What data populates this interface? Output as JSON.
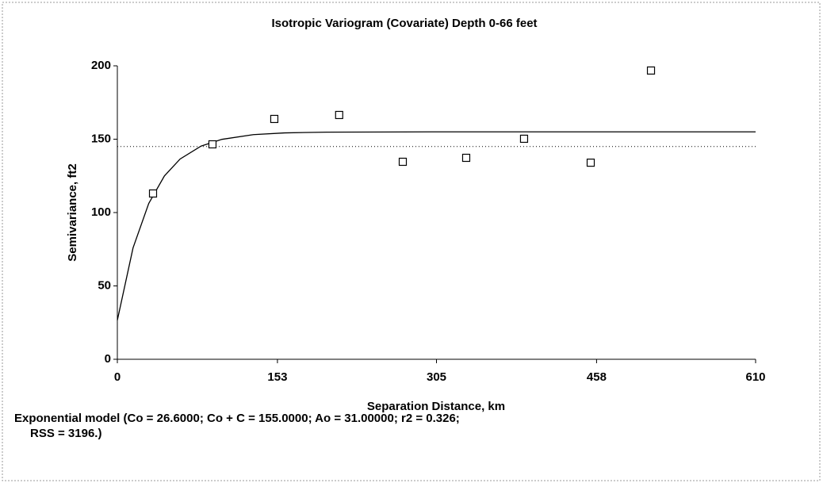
{
  "chart_data": {
    "type": "scatter",
    "title": "Isotropic Variogram (Covariate) Depth 0-66 feet",
    "x_label": "Separation Distance, km",
    "y_label": "Semivariance, ft2",
    "x": [
      34.1,
      90.9,
      150,
      212,
      272.8,
      333.4,
      388.7,
      452.4,
      510
    ],
    "values": [
      113,
      146.5,
      163.8,
      166.5,
      134.6,
      137.3,
      150.3,
      134,
      196.8
    ],
    "model_curve": {
      "x": [
        0,
        15,
        30,
        45,
        60,
        80,
        100,
        130,
        160,
        200,
        300,
        400,
        500,
        610
      ],
      "values": [
        26.6,
        75.9,
        106.2,
        125,
        136.5,
        145.3,
        149.9,
        153.1,
        154.3,
        154.8,
        155,
        155,
        155,
        155
      ]
    },
    "reference_line": 145,
    "xlim": [
      0,
      610
    ],
    "ylim": [
      0,
      200
    ],
    "xticks": [
      0,
      153,
      305,
      458,
      610
    ],
    "yticks": [
      0,
      50,
      100,
      150,
      200
    ],
    "footer": [
      "Exponential model (Co = 26.6000; Co + C = 155.0000; Ao = 31.00000; r2 = 0.326;",
      "RSS = 3196.)"
    ]
  }
}
